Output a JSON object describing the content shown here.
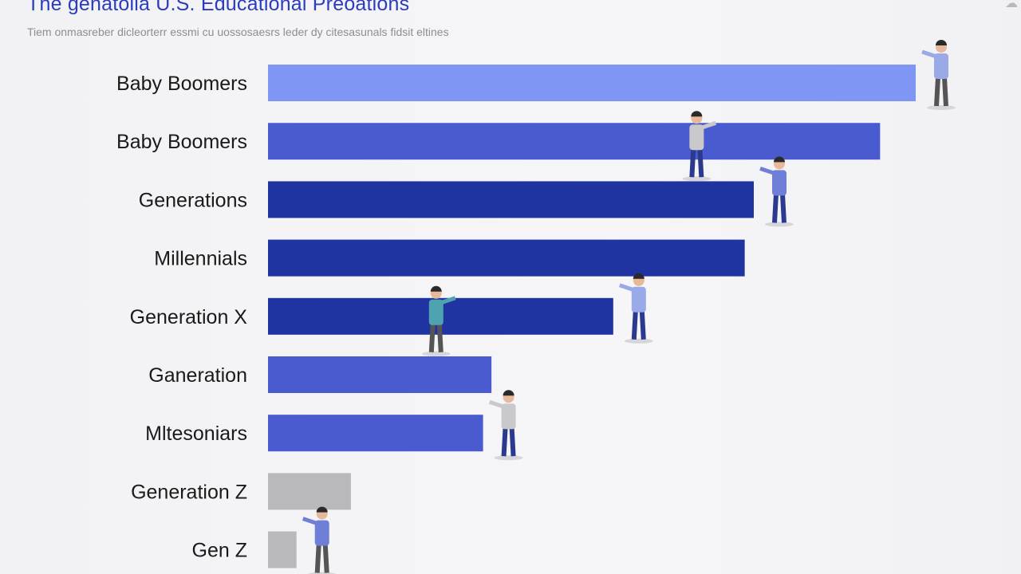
{
  "title": "The genatoila U.S. Educational Preoations",
  "subtitle": "Tiem onmasreber dicleorterr essmi cu uossosaesrs leder dy citesasunals fidsit eltines",
  "corner_icon": "cloud-icon",
  "colors": {
    "light_blue": "#7f96f4",
    "medium_blue": "#4a5bd0",
    "dark_blue": "#1f33a1",
    "gray": "#b9b9bb",
    "title": "#2b3cc0"
  },
  "chart_data": {
    "type": "bar",
    "orientation": "horizontal",
    "categories": [
      "Baby Boomers",
      "Baby Boomers",
      "Generations",
      "Millennials",
      "Generation X",
      "Ganeration",
      "Mltesoniars",
      "Generation Z",
      "Gen Z"
    ],
    "values": [
      100,
      94.5,
      75,
      73.6,
      53.3,
      34.5,
      33.2,
      12.8,
      4.4
    ],
    "bar_colors": [
      "#7f96f4",
      "#4a5bd0",
      "#1f33a1",
      "#1f33a1",
      "#1f33a1",
      "#4a5bd0",
      "#4a5bd0",
      "#b9b9bb",
      "#b9b9bb"
    ],
    "xlim": [
      -42,
      120
    ],
    "grid": false,
    "legend": "none",
    "xlabel": "",
    "ylabel": ""
  },
  "figures": [
    {
      "name": "presenter-figure-1",
      "category_index": 0,
      "anchor": "bar-end"
    },
    {
      "name": "presenter-figure-2",
      "category_index": 1,
      "anchor": "inside"
    },
    {
      "name": "presenter-figure-3",
      "category_index": 2,
      "anchor": "bar-end"
    },
    {
      "name": "presenter-figure-4",
      "category_index": 4,
      "anchor": "inside"
    },
    {
      "name": "presenter-figure-5",
      "category_index": 4,
      "anchor": "bar-end"
    },
    {
      "name": "presenter-figure-6",
      "category_index": 6,
      "anchor": "bar-end"
    },
    {
      "name": "presenter-figure-7",
      "category_index": 8,
      "anchor": "bar-end"
    }
  ]
}
